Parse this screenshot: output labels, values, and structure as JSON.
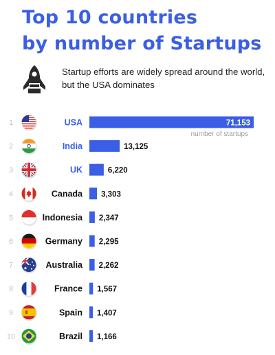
{
  "header": {
    "title_line1": "Top 10 countries",
    "title_line2": "by number of Startups",
    "subtitle": "Startup efforts are widely spread around the world, but the USA dominates"
  },
  "icons": {
    "header_icon": "rocket-icon"
  },
  "colors": {
    "accent": "#3b5ee7",
    "highlight_label": "#3b5ee7",
    "text": "#111111",
    "rank": "#c4c4c4"
  },
  "chart_data": {
    "type": "bar",
    "orientation": "horizontal",
    "title": "Top 10 countries by number of Startups",
    "subtitle": "Startup efforts are widely spread around the world, but the USA dominates",
    "categories": [
      "USA",
      "India",
      "UK",
      "Canada",
      "Indonesia",
      "Germany",
      "Australia",
      "France",
      "Spain",
      "Brazil"
    ],
    "ranks": [
      "1",
      "2",
      "3",
      "4",
      "5",
      "6",
      "7",
      "8",
      "9",
      "10"
    ],
    "values": [
      71153,
      13125,
      6220,
      3303,
      2347,
      2295,
      2262,
      1567,
      1407,
      1166
    ],
    "value_labels": [
      "71,153",
      "13,125",
      "6,220",
      "3,303",
      "2,347",
      "2,295",
      "2,262",
      "1,567",
      "1,407",
      "1,166"
    ],
    "value_unit_label": "number of startups",
    "highlighted": [
      "USA",
      "India",
      "UK"
    ],
    "flag_icons": [
      "flag-usa-icon",
      "flag-india-icon",
      "flag-uk-icon",
      "flag-canada-icon",
      "flag-indonesia-icon",
      "flag-germany-icon",
      "flag-australia-icon",
      "flag-france-icon",
      "flag-spain-icon",
      "flag-brazil-icon"
    ],
    "xlim": [
      0,
      71153
    ],
    "grid": false,
    "legend": "none"
  }
}
